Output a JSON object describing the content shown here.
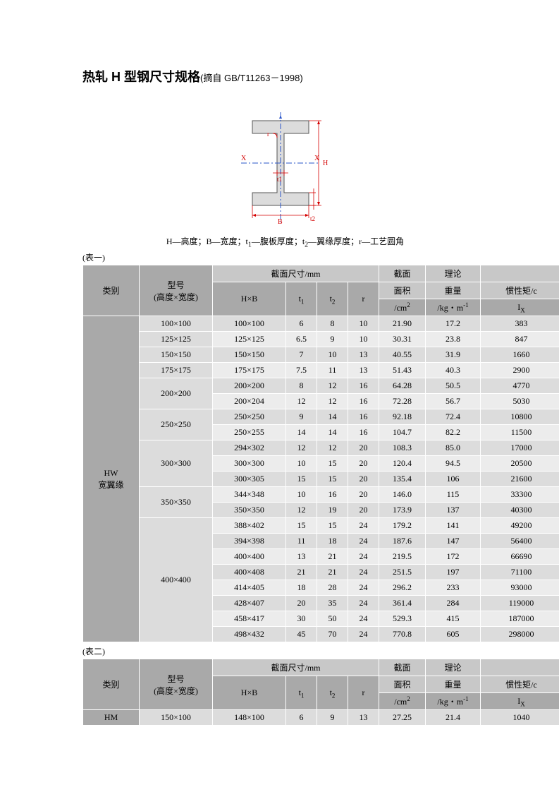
{
  "title_main": "热轧 H 型钢尺寸规格",
  "title_sub": "(摘自 GB/T11263－1998)",
  "caption_parts": {
    "p1": "H—高度；B—宽度；t",
    "p2": "—腹板厚度；t",
    "p3": "—翼缘厚度；r—工艺圆角"
  },
  "table1_label": "(表一)",
  "table2_label": "(表二)",
  "headers": {
    "category": "类别",
    "model_l1": "型号",
    "model_l2": "(高度×宽度)",
    "section_dim": "截面尺寸/mm",
    "hxb": "H×B",
    "t1": "t",
    "t2": "t",
    "r": "r",
    "area_l1": "截面",
    "area_l2": "面积",
    "area_l3": "/cm",
    "weight_l1": "理论",
    "weight_l2": "重量",
    "weight_l3": "/kg・m",
    "inertia": "惯性矩/c",
    "ix_pre": "I",
    "ix_sub": "X"
  },
  "diagram": {
    "labels": {
      "x_left": "X",
      "x_right": "X",
      "t1": "t1",
      "t2": "t2",
      "B": "B",
      "H": "H",
      "r": "r"
    },
    "colors": {
      "steel_fill": "#dcdcdc",
      "steel_stroke": "#555555",
      "dim": "#d40000",
      "axis": "#2a55c9"
    }
  },
  "table1": {
    "category_l1": "HW",
    "category_l2": "宽翼缘",
    "groups": [
      {
        "model": "100×100",
        "rows": [
          {
            "hxb": "100×100",
            "t1": "6",
            "t2": "8",
            "r": "10",
            "area": "21.90",
            "wt": "17.2",
            "ix": "383"
          }
        ]
      },
      {
        "model": "125×125",
        "rows": [
          {
            "hxb": "125×125",
            "t1": "6.5",
            "t2": "9",
            "r": "10",
            "area": "30.31",
            "wt": "23.8",
            "ix": "847"
          }
        ]
      },
      {
        "model": "150×150",
        "rows": [
          {
            "hxb": "150×150",
            "t1": "7",
            "t2": "10",
            "r": "13",
            "area": "40.55",
            "wt": "31.9",
            "ix": "1660"
          }
        ]
      },
      {
        "model": "175×175",
        "rows": [
          {
            "hxb": "175×175",
            "t1": "7.5",
            "t2": "11",
            "r": "13",
            "area": "51.43",
            "wt": "40.3",
            "ix": "2900"
          }
        ]
      },
      {
        "model": "200×200",
        "rows": [
          {
            "hxb": "200×200",
            "t1": "8",
            "t2": "12",
            "r": "16",
            "area": "64.28",
            "wt": "50.5",
            "ix": "4770"
          },
          {
            "hxb": "200×204",
            "t1": "12",
            "t2": "12",
            "r": "16",
            "area": "72.28",
            "wt": "56.7",
            "ix": "5030"
          }
        ]
      },
      {
        "model": "250×250",
        "rows": [
          {
            "hxb": "250×250",
            "t1": "9",
            "t2": "14",
            "r": "16",
            "area": "92.18",
            "wt": "72.4",
            "ix": "10800"
          },
          {
            "hxb": "250×255",
            "t1": "14",
            "t2": "14",
            "r": "16",
            "area": "104.7",
            "wt": "82.2",
            "ix": "11500"
          }
        ]
      },
      {
        "model": "300×300",
        "rows": [
          {
            "hxb": "294×302",
            "t1": "12",
            "t2": "12",
            "r": "20",
            "area": "108.3",
            "wt": "85.0",
            "ix": "17000"
          },
          {
            "hxb": "300×300",
            "t1": "10",
            "t2": "15",
            "r": "20",
            "area": "120.4",
            "wt": "94.5",
            "ix": "20500"
          },
          {
            "hxb": "300×305",
            "t1": "15",
            "t2": "15",
            "r": "20",
            "area": "135.4",
            "wt": "106",
            "ix": "21600"
          }
        ]
      },
      {
        "model": "350×350",
        "rows": [
          {
            "hxb": "344×348",
            "t1": "10",
            "t2": "16",
            "r": "20",
            "area": "146.0",
            "wt": "115",
            "ix": "33300"
          },
          {
            "hxb": "350×350",
            "t1": "12",
            "t2": "19",
            "r": "20",
            "area": "173.9",
            "wt": "137",
            "ix": "40300"
          }
        ]
      },
      {
        "model": "400×400",
        "rows": [
          {
            "hxb": "388×402",
            "t1": "15",
            "t2": "15",
            "r": "24",
            "area": "179.2",
            "wt": "141",
            "ix": "49200"
          },
          {
            "hxb": "394×398",
            "t1": "11",
            "t2": "18",
            "r": "24",
            "area": "187.6",
            "wt": "147",
            "ix": "56400"
          },
          {
            "hxb": "400×400",
            "t1": "13",
            "t2": "21",
            "r": "24",
            "area": "219.5",
            "wt": "172",
            "ix": "66690"
          },
          {
            "hxb": "400×408",
            "t1": "21",
            "t2": "21",
            "r": "24",
            "area": "251.5",
            "wt": "197",
            "ix": "71100"
          },
          {
            "hxb": "414×405",
            "t1": "18",
            "t2": "28",
            "r": "24",
            "area": "296.2",
            "wt": "233",
            "ix": "93000"
          },
          {
            "hxb": "428×407",
            "t1": "20",
            "t2": "35",
            "r": "24",
            "area": "361.4",
            "wt": "284",
            "ix": "119000"
          },
          {
            "hxb": "458×417",
            "t1": "30",
            "t2": "50",
            "r": "24",
            "area": "529.3",
            "wt": "415",
            "ix": "187000"
          },
          {
            "hxb": "498×432",
            "t1": "45",
            "t2": "70",
            "r": "24",
            "area": "770.8",
            "wt": "605",
            "ix": "298000"
          }
        ]
      }
    ]
  },
  "table2": {
    "category": "HM",
    "groups": [
      {
        "model": "150×100",
        "rows": [
          {
            "hxb": "148×100",
            "t1": "6",
            "t2": "9",
            "r": "13",
            "area": "27.25",
            "wt": "21.4",
            "ix": "1040"
          }
        ]
      }
    ]
  }
}
